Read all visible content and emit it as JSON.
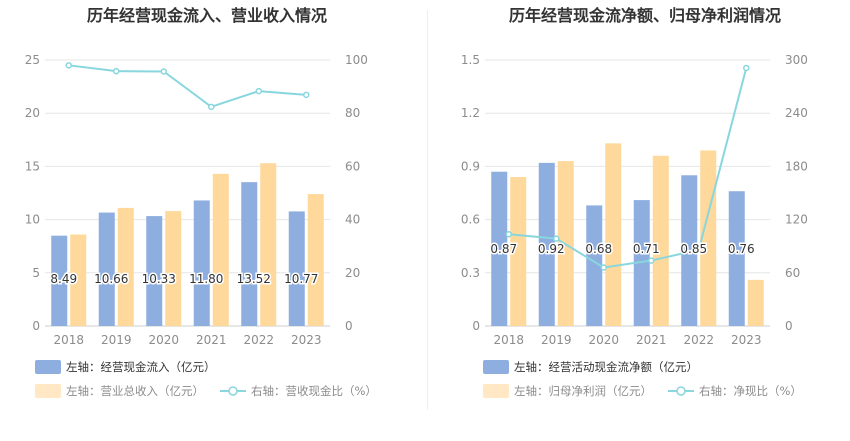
{
  "colors": {
    "bar_blue": "#8eaee0",
    "bar_orange": "#ffd99b",
    "line_teal": "#88d6de",
    "axis_text": "#8c8c8c",
    "grid": "#e6e6e6",
    "title": "#333333"
  },
  "chart_data": [
    {
      "type": "bar",
      "title": "历年经营现金流入、营业收入情况",
      "categories": [
        "2018",
        "2019",
        "2020",
        "2021",
        "2022",
        "2023"
      ],
      "left_axis": {
        "ylim": [
          0,
          25
        ],
        "ticks": [
          "0",
          "5",
          "10",
          "15",
          "20",
          "25"
        ]
      },
      "right_axis": {
        "ylim": [
          0,
          100
        ],
        "ticks": [
          "0",
          "20",
          "40",
          "60",
          "80",
          "100"
        ]
      },
      "grid": true,
      "legend_position": "bottom-left",
      "series": [
        {
          "name": "左轴：经营现金流入（亿元）",
          "kind": "bar",
          "axis": "left",
          "color": "#8eaee0",
          "values": [
            8.49,
            10.66,
            10.33,
            11.8,
            13.52,
            10.77
          ],
          "data_labels": [
            "8.49",
            "10.66",
            "10.33",
            "11.80",
            "13.52",
            "10.77"
          ]
        },
        {
          "name": "左轴：营业总收入（亿元）",
          "kind": "bar",
          "axis": "left",
          "color": "#ffd99b",
          "values": [
            8.6,
            11.1,
            10.8,
            14.3,
            15.3,
            12.4
          ]
        },
        {
          "name": "右轴：营收现金比（%）",
          "kind": "line",
          "axis": "right",
          "color": "#88d6de",
          "values": [
            98.0,
            95.8,
            95.7,
            82.4,
            88.3,
            86.9
          ]
        }
      ]
    },
    {
      "type": "bar",
      "title": "历年经营现金流净额、归母净利润情况",
      "categories": [
        "2018",
        "2019",
        "2020",
        "2021",
        "2022",
        "2023"
      ],
      "left_axis": {
        "ylim": [
          0,
          1.5
        ],
        "ticks": [
          "0",
          "0.3",
          "0.6",
          "0.9",
          "1.2",
          "1.5"
        ]
      },
      "right_axis": {
        "ylim": [
          0,
          300
        ],
        "ticks": [
          "0",
          "60",
          "120",
          "180",
          "240",
          "300"
        ]
      },
      "grid": true,
      "legend_position": "bottom-left",
      "series": [
        {
          "name": "左轴：经营活动现金流净额（亿元）",
          "kind": "bar",
          "axis": "left",
          "color": "#8eaee0",
          "values": [
            0.87,
            0.92,
            0.68,
            0.71,
            0.85,
            0.76
          ],
          "data_labels": [
            "0.87",
            "0.92",
            "0.68",
            "0.71",
            "0.85",
            "0.76"
          ]
        },
        {
          "name": "左轴：归母净利润（亿元）",
          "kind": "bar",
          "axis": "left",
          "color": "#ffd99b",
          "values": [
            0.84,
            0.93,
            1.03,
            0.96,
            0.99,
            0.26
          ]
        },
        {
          "name": "右轴：净现比（%）",
          "kind": "line",
          "axis": "right",
          "color": "#88d6de",
          "values": [
            103.5,
            98.6,
            66.0,
            73.8,
            85.9,
            291.0
          ]
        }
      ]
    }
  ]
}
